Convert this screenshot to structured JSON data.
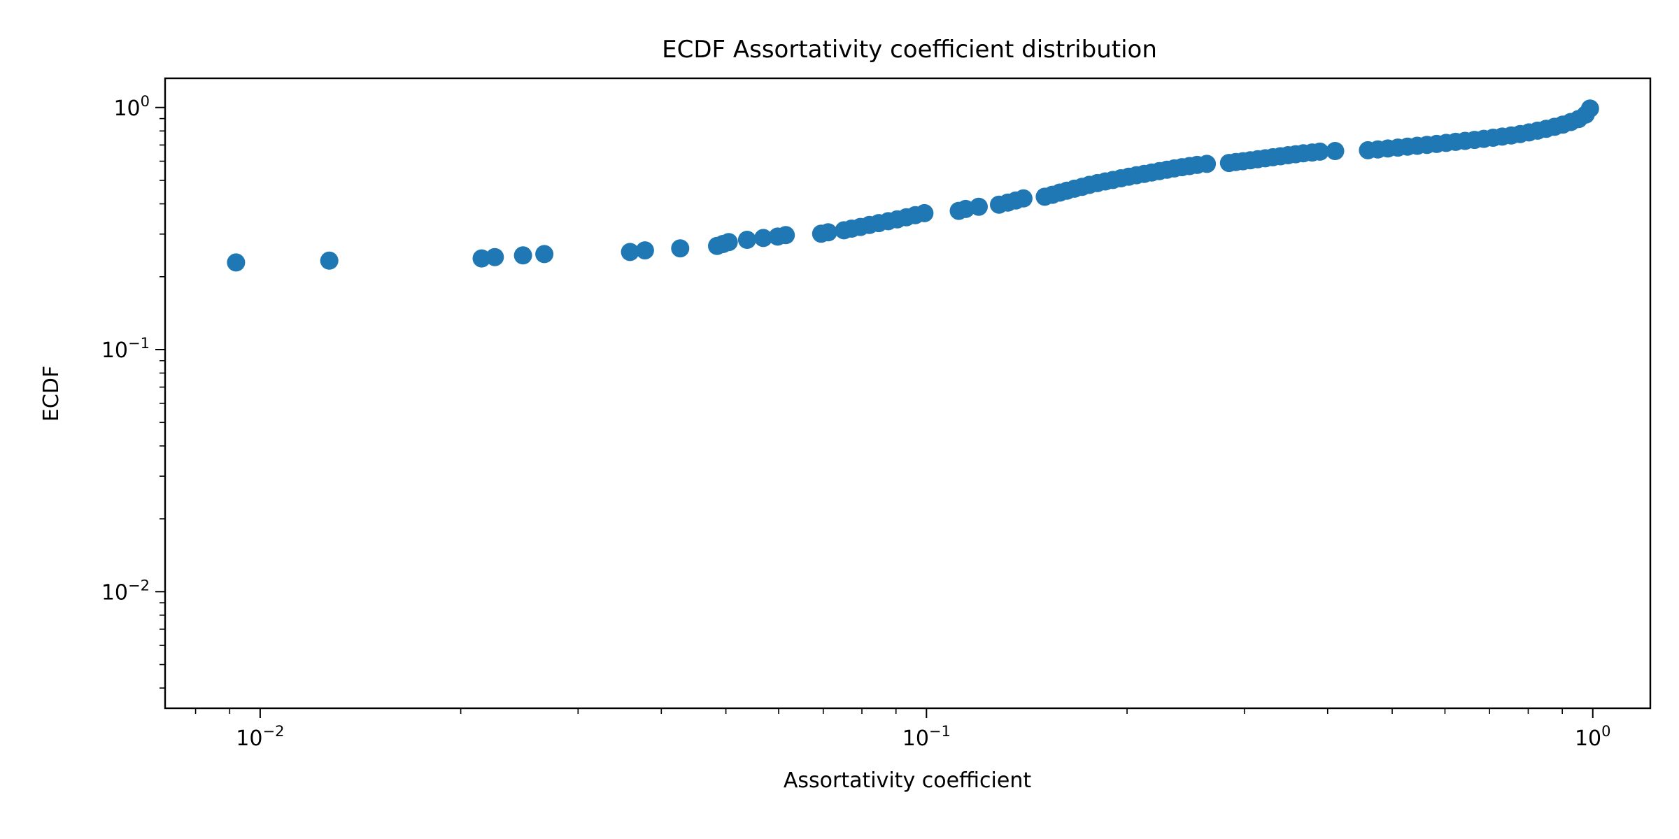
{
  "chart_data": {
    "type": "scatter",
    "title": "ECDF Assortativity coefficient distribution",
    "xlabel": "Assortativity coefficient",
    "ylabel": "ECDF",
    "xscale": "log",
    "yscale": "log",
    "xlim": [
      0.0072,
      1.22
    ],
    "ylim": [
      0.0033,
      1.32
    ],
    "grid": false,
    "legend": "none",
    "color": "#1f77b4",
    "xticks": [
      {
        "value": 0.01,
        "base": "10",
        "exp": "−2"
      },
      {
        "value": 0.1,
        "base": "10",
        "exp": "−1"
      },
      {
        "value": 1,
        "base": "10",
        "exp": "0"
      }
    ],
    "yticks": [
      {
        "value": 0.01,
        "base": "10",
        "exp": "−2"
      },
      {
        "value": 0.1,
        "base": "10",
        "exp": "−1"
      },
      {
        "value": 1,
        "base": "10",
        "exp": "0"
      }
    ],
    "points": [
      [
        0.0092,
        0.229
      ],
      [
        0.0127,
        0.233
      ],
      [
        0.0215,
        0.238
      ],
      [
        0.0225,
        0.241
      ],
      [
        0.0248,
        0.245
      ],
      [
        0.0267,
        0.248
      ],
      [
        0.0359,
        0.253
      ],
      [
        0.0378,
        0.257
      ],
      [
        0.0427,
        0.262
      ],
      [
        0.0485,
        0.268
      ],
      [
        0.0495,
        0.273
      ],
      [
        0.0505,
        0.278
      ],
      [
        0.0538,
        0.284
      ],
      [
        0.0569,
        0.289
      ],
      [
        0.0598,
        0.293
      ],
      [
        0.0615,
        0.297
      ],
      [
        0.0695,
        0.301
      ],
      [
        0.0712,
        0.305
      ],
      [
        0.0752,
        0.311
      ],
      [
        0.0772,
        0.316
      ],
      [
        0.0796,
        0.321
      ],
      [
        0.0821,
        0.327
      ],
      [
        0.0848,
        0.333
      ],
      [
        0.0876,
        0.339
      ],
      [
        0.0904,
        0.345
      ],
      [
        0.0933,
        0.352
      ],
      [
        0.0962,
        0.359
      ],
      [
        0.0993,
        0.366
      ],
      [
        0.1118,
        0.374
      ],
      [
        0.1145,
        0.381
      ],
      [
        0.1198,
        0.389
      ],
      [
        0.1285,
        0.397
      ],
      [
        0.1325,
        0.405
      ],
      [
        0.1362,
        0.413
      ],
      [
        0.1398,
        0.421
      ],
      [
        0.1505,
        0.428
      ],
      [
        0.1545,
        0.436
      ],
      [
        0.1585,
        0.445
      ],
      [
        0.1625,
        0.453
      ],
      [
        0.1668,
        0.462
      ],
      [
        0.1712,
        0.47
      ],
      [
        0.1756,
        0.479
      ],
      [
        0.1805,
        0.487
      ],
      [
        0.1855,
        0.495
      ],
      [
        0.1905,
        0.502
      ],
      [
        0.1958,
        0.51
      ],
      [
        0.2012,
        0.518
      ],
      [
        0.2066,
        0.525
      ],
      [
        0.2122,
        0.532
      ],
      [
        0.2178,
        0.539
      ],
      [
        0.2236,
        0.546
      ],
      [
        0.2296,
        0.553
      ],
      [
        0.2355,
        0.56
      ],
      [
        0.2418,
        0.567
      ],
      [
        0.2482,
        0.573
      ],
      [
        0.2548,
        0.579
      ],
      [
        0.2635,
        0.585
      ],
      [
        0.2845,
        0.59
      ],
      [
        0.2912,
        0.595
      ],
      [
        0.2985,
        0.6
      ],
      [
        0.3062,
        0.605
      ],
      [
        0.3142,
        0.611
      ],
      [
        0.3225,
        0.617
      ],
      [
        0.3311,
        0.623
      ],
      [
        0.3398,
        0.629
      ],
      [
        0.3488,
        0.635
      ],
      [
        0.3582,
        0.641
      ],
      [
        0.3678,
        0.647
      ],
      [
        0.3792,
        0.652
      ],
      [
        0.3895,
        0.657
      ],
      [
        0.4105,
        0.661
      ],
      [
        0.4598,
        0.666
      ],
      [
        0.4758,
        0.671
      ],
      [
        0.4925,
        0.677
      ],
      [
        0.5098,
        0.683
      ],
      [
        0.5272,
        0.689
      ],
      [
        0.5452,
        0.695
      ],
      [
        0.5638,
        0.701
      ],
      [
        0.5831,
        0.707
      ],
      [
        0.6025,
        0.714
      ],
      [
        0.6225,
        0.721
      ],
      [
        0.6432,
        0.728
      ],
      [
        0.6645,
        0.735
      ],
      [
        0.6862,
        0.742
      ],
      [
        0.7085,
        0.75
      ],
      [
        0.7312,
        0.758
      ],
      [
        0.7545,
        0.766
      ],
      [
        0.7782,
        0.777
      ],
      [
        0.8022,
        0.789
      ],
      [
        0.8265,
        0.802
      ],
      [
        0.8512,
        0.816
      ],
      [
        0.8762,
        0.832
      ],
      [
        0.9015,
        0.85
      ],
      [
        0.9268,
        0.871
      ],
      [
        0.9522,
        0.896
      ],
      [
        0.9758,
        0.935
      ],
      [
        0.9905,
        0.99
      ]
    ]
  }
}
